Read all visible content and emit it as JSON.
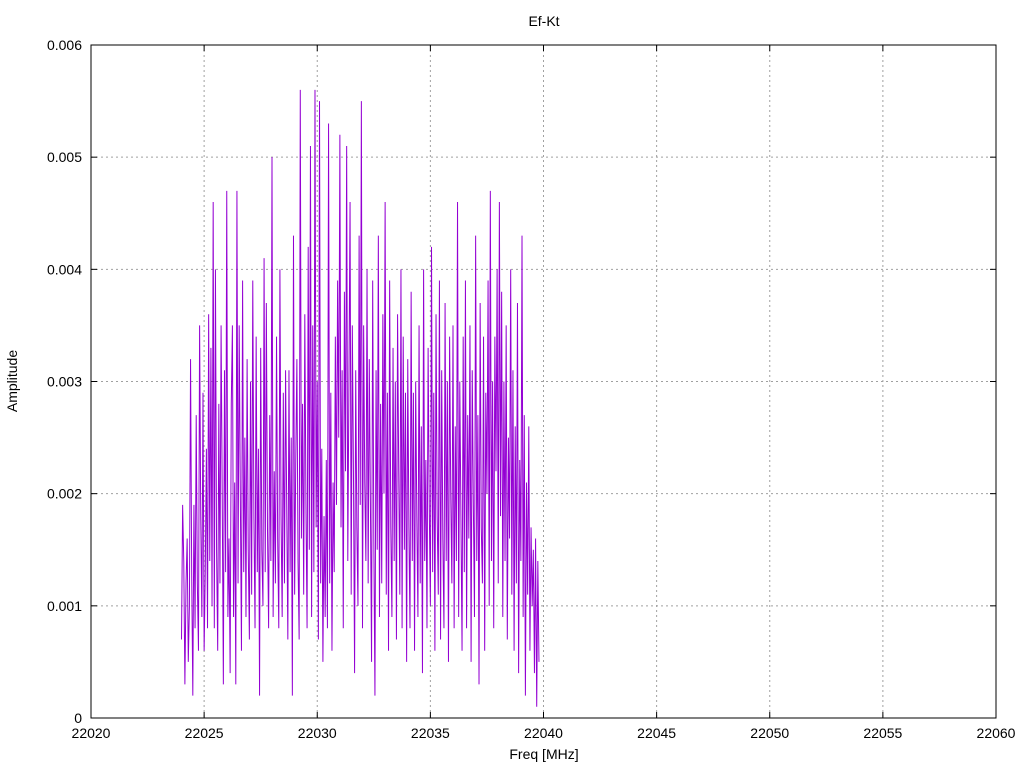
{
  "chart_data": {
    "type": "line",
    "title": "Ef-Kt",
    "xlabel": "Freq [MHz]",
    "ylabel": "Amplitude",
    "xlim": [
      22020,
      22060
    ],
    "ylim": [
      0,
      0.006
    ],
    "xticks": [
      22020,
      22025,
      22030,
      22035,
      22040,
      22045,
      22050,
      22055,
      22060
    ],
    "xtick_labels": [
      "22020",
      "22025",
      "22030",
      "22035",
      "22040",
      "22045",
      "22050",
      "22055",
      "22060"
    ],
    "yticks": [
      0,
      0.001,
      0.002,
      0.003,
      0.004,
      0.005,
      0.006
    ],
    "ytick_labels": [
      "0",
      "0.001",
      "0.002",
      "0.003",
      "0.004",
      "0.005",
      "0.006"
    ],
    "grid": true,
    "legend": "none",
    "series_color": "#9400d3",
    "series": [
      {
        "x_start": 22024.0,
        "x_step": 0.05,
        "values": [
          0.0007,
          0.0019,
          0.0014,
          0.0003,
          0.0012,
          0.0016,
          0.0005,
          0.001,
          0.0032,
          0.0013,
          0.0002,
          0.0019,
          0.0008,
          0.0027,
          0.0012,
          0.0006,
          0.0035,
          0.0018,
          0.0009,
          0.0029,
          0.0006,
          0.0013,
          0.0024,
          0.0008,
          0.0036,
          0.0014,
          0.0033,
          0.001,
          0.0046,
          0.0008,
          0.004,
          0.0015,
          0.0006,
          0.0028,
          0.0012,
          0.0035,
          0.002,
          0.0003,
          0.0031,
          0.0013,
          0.0047,
          0.0009,
          0.0016,
          0.0004,
          0.0028,
          0.0035,
          0.0009,
          0.0021,
          0.0003,
          0.0047,
          0.0012,
          0.0035,
          0.002,
          0.0006,
          0.0039,
          0.0013,
          0.0025,
          0.0009,
          0.0032,
          0.0015,
          0.0007,
          0.003,
          0.0011,
          0.0039,
          0.0018,
          0.0008,
          0.0034,
          0.0013,
          0.0024,
          0.0002,
          0.0033,
          0.0015,
          0.001,
          0.0041,
          0.0013,
          0.0037,
          0.0017,
          0.0008,
          0.0027,
          0.0014,
          0.005,
          0.0009,
          0.0022,
          0.0012,
          0.0034,
          0.0016,
          0.0008,
          0.004,
          0.0018,
          0.0009,
          0.0029,
          0.0012,
          0.0031,
          0.0019,
          0.0007,
          0.0031,
          0.0013,
          0.0025,
          0.0002,
          0.0043,
          0.0011,
          0.0023,
          0.0032,
          0.0014,
          0.0007,
          0.0056,
          0.0016,
          0.0028,
          0.0011,
          0.0036,
          0.0019,
          0.0008,
          0.0042,
          0.0015,
          0.0051,
          0.0009,
          0.0035,
          0.0013,
          0.0056,
          0.0017,
          0.003,
          0.0007,
          0.0055,
          0.0012,
          0.0024,
          0.0005,
          0.0018,
          0.0009,
          0.0023,
          0.0008,
          0.0053,
          0.0012,
          0.0029,
          0.0006,
          0.0021,
          0.0013,
          0.0034,
          0.0019,
          0.0039,
          0.0025,
          0.0052,
          0.0017,
          0.0031,
          0.0008,
          0.0038,
          0.0022,
          0.0051,
          0.0014,
          0.003,
          0.0046,
          0.0011,
          0.0035,
          0.0022,
          0.0004,
          0.0031,
          0.0017,
          0.001,
          0.0043,
          0.0019,
          0.0055,
          0.0008,
          0.0035,
          0.0021,
          0.0014,
          0.004,
          0.0012,
          0.0032,
          0.0019,
          0.0005,
          0.0039,
          0.0016,
          0.0002,
          0.0031,
          0.0015,
          0.0043,
          0.0009,
          0.0028,
          0.0012,
          0.0036,
          0.002,
          0.0046,
          0.0011,
          0.0029,
          0.0006,
          0.0039,
          0.0017,
          0.0009,
          0.0033,
          0.0014,
          0.003,
          0.0007,
          0.0036,
          0.0022,
          0.0011,
          0.004,
          0.0008,
          0.0034,
          0.0015,
          0.0029,
          0.0005,
          0.0032,
          0.0017,
          0.0008,
          0.0038,
          0.0014,
          0.0029,
          0.0006,
          0.003,
          0.0018,
          0.0009,
          0.0035,
          0.0012,
          0.0026,
          0.0004,
          0.004,
          0.0014,
          0.0023,
          0.0008,
          0.0033,
          0.0019,
          0.001,
          0.0042,
          0.0013,
          0.0029,
          0.0006,
          0.0036,
          0.0018,
          0.0011,
          0.0039,
          0.0007,
          0.0031,
          0.0016,
          0.0008,
          0.0037,
          0.0014,
          0.003,
          0.0005,
          0.0034,
          0.002,
          0.0012,
          0.0035,
          0.0008,
          0.0026,
          0.0014,
          0.0046,
          0.0009,
          0.003,
          0.0018,
          0.0006,
          0.0034,
          0.0013,
          0.0039,
          0.0008,
          0.0027,
          0.0016,
          0.0035,
          0.0005,
          0.0031,
          0.0019,
          0.0009,
          0.0043,
          0.0014,
          0.0027,
          0.0003,
          0.0037,
          0.0017,
          0.0012,
          0.0034,
          0.0006,
          0.0029,
          0.002,
          0.0039,
          0.001,
          0.0047,
          0.0014,
          0.003,
          0.0008,
          0.0034,
          0.0022,
          0.004,
          0.0012,
          0.0046,
          0.0018,
          0.0038,
          0.0009,
          0.003,
          0.0014,
          0.0035,
          0.0007,
          0.0025,
          0.0016,
          0.004,
          0.0011,
          0.0031,
          0.0006,
          0.0026,
          0.0012,
          0.0037,
          0.0004,
          0.0023,
          0.0014,
          0.0043,
          0.0009,
          0.0027,
          0.0002,
          0.0021,
          0.0011,
          0.0026,
          0.0006,
          0.0017,
          0.001,
          0.0015,
          0.0004,
          0.0016,
          0.0001,
          0.0014,
          0.0005
        ]
      }
    ]
  }
}
